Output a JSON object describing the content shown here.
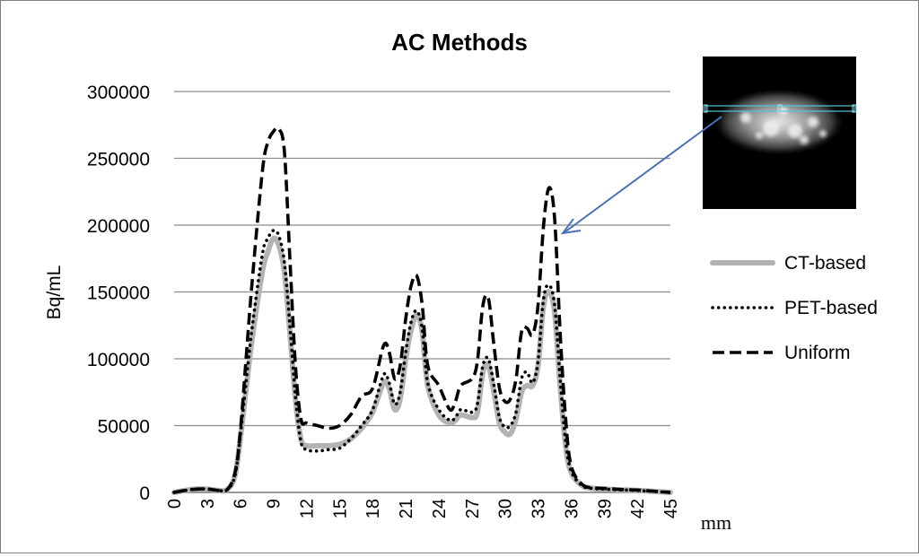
{
  "chart_data": {
    "type": "line",
    "title": "AC Methods",
    "xlabel": "mm",
    "ylabel": "Bq/mL",
    "xlim": [
      0,
      45
    ],
    "ylim": [
      0,
      300000
    ],
    "x_ticks": [
      0,
      3,
      6,
      9,
      12,
      15,
      18,
      21,
      24,
      27,
      30,
      33,
      36,
      39,
      42,
      45
    ],
    "y_ticks": [
      0,
      50000,
      100000,
      150000,
      200000,
      250000,
      300000
    ],
    "grid": "horizontal",
    "legend": "right",
    "series": [
      {
        "name": "CT-based",
        "style": "solid",
        "color": "#b3b3b3",
        "x": [
          0,
          1,
          2,
          3,
          4,
          4.8,
          5.5,
          6,
          7,
          8,
          8.5,
          9,
          9.5,
          10,
          10.5,
          11,
          11.5,
          12,
          13,
          14,
          15,
          16,
          17,
          18,
          19,
          19.5,
          20,
          20.5,
          21,
          21.5,
          22,
          22.5,
          23,
          24,
          25,
          25.5,
          26,
          27,
          27.5,
          28,
          28.5,
          29,
          29.5,
          30,
          30.5,
          31,
          31.5,
          32,
          32.5,
          33,
          33.5,
          34,
          34.5,
          35,
          35.5,
          36,
          37,
          38,
          39,
          40,
          41,
          42,
          43,
          44,
          45
        ],
        "values": [
          0,
          1500,
          2500,
          2500,
          1500,
          2000,
          12000,
          40000,
          110000,
          165000,
          180000,
          190000,
          185000,
          165000,
          120000,
          70000,
          40000,
          35000,
          35000,
          35000,
          36000,
          40000,
          48000,
          60000,
          82000,
          78000,
          62000,
          70000,
          100000,
          122000,
          133000,
          120000,
          80000,
          58000,
          52000,
          54000,
          58000,
          56000,
          60000,
          90000,
          95000,
          75000,
          52000,
          45000,
          44000,
          55000,
          75000,
          80000,
          80000,
          95000,
          140000,
          150000,
          135000,
          80000,
          35000,
          15000,
          5000,
          3000,
          2500,
          2000,
          1800,
          1500,
          1000,
          500,
          0
        ]
      },
      {
        "name": "PET-based",
        "style": "dotted",
        "color": "#000000",
        "x": [
          0,
          1,
          2,
          3,
          4,
          4.8,
          5.5,
          6,
          7,
          8,
          8.5,
          9,
          9.5,
          10,
          10.5,
          11,
          11.5,
          12,
          13,
          14,
          15,
          16,
          17,
          18,
          19,
          19.5,
          20,
          20.5,
          21,
          21.5,
          22,
          22.5,
          23,
          24,
          25,
          25.5,
          26,
          27,
          27.5,
          28,
          28.5,
          29,
          29.5,
          30,
          30.5,
          31,
          31.5,
          32,
          32.5,
          33,
          33.5,
          34,
          34.5,
          35,
          35.5,
          36,
          37,
          38,
          39,
          40,
          41,
          42,
          43,
          44,
          45
        ],
        "values": [
          0,
          1500,
          2500,
          2500,
          1500,
          2000,
          12000,
          42000,
          118000,
          178000,
          190000,
          196000,
          192000,
          172000,
          125000,
          72000,
          38000,
          32000,
          31000,
          32000,
          33000,
          40000,
          50000,
          62000,
          88000,
          82000,
          66000,
          75000,
          105000,
          128000,
          136000,
          122000,
          82000,
          62000,
          54000,
          56000,
          62000,
          60000,
          66000,
          95000,
          100000,
          80000,
          56000,
          49000,
          50000,
          60000,
          85000,
          90000,
          82000,
          98000,
          145000,
          155000,
          140000,
          85000,
          38000,
          16000,
          5000,
          3000,
          2500,
          2000,
          1800,
          1500,
          1000,
          500,
          0
        ]
      },
      {
        "name": "Uniform",
        "style": "dashed",
        "color": "#000000",
        "x": [
          0,
          1,
          2,
          3,
          4,
          4.8,
          5.5,
          6,
          7,
          8,
          8.5,
          9,
          9.5,
          10,
          10.5,
          11,
          11.5,
          12,
          13,
          14,
          15,
          16,
          17,
          18,
          19,
          19.5,
          20,
          20.5,
          21,
          21.5,
          22,
          22.5,
          23,
          24,
          25,
          25.5,
          26,
          27,
          27.5,
          28,
          28.5,
          29,
          29.5,
          30,
          30.5,
          31,
          31.5,
          32,
          32.5,
          33,
          33.5,
          34,
          34.5,
          35,
          35.5,
          36,
          37,
          38,
          39,
          40,
          41,
          42,
          43,
          44,
          45
        ],
        "values": [
          0,
          1500,
          2500,
          2500,
          1500,
          2000,
          14000,
          45000,
          150000,
          240000,
          262000,
          270000,
          272000,
          255000,
          175000,
          95000,
          55000,
          52000,
          50000,
          48000,
          50000,
          58000,
          72000,
          78000,
          110000,
          105000,
          85000,
          95000,
          130000,
          155000,
          162000,
          140000,
          95000,
          80000,
          62000,
          68000,
          80000,
          85000,
          98000,
          140000,
          145000,
          110000,
          78000,
          68000,
          70000,
          85000,
          120000,
          123000,
          118000,
          140000,
          200000,
          228000,
          205000,
          120000,
          55000,
          20000,
          6000,
          3500,
          3000,
          2500,
          2000,
          1800,
          1200,
          600,
          0
        ]
      }
    ],
    "inset_image": "PET scan cross-section with profile line",
    "arrow_color": "#4a72b8"
  }
}
